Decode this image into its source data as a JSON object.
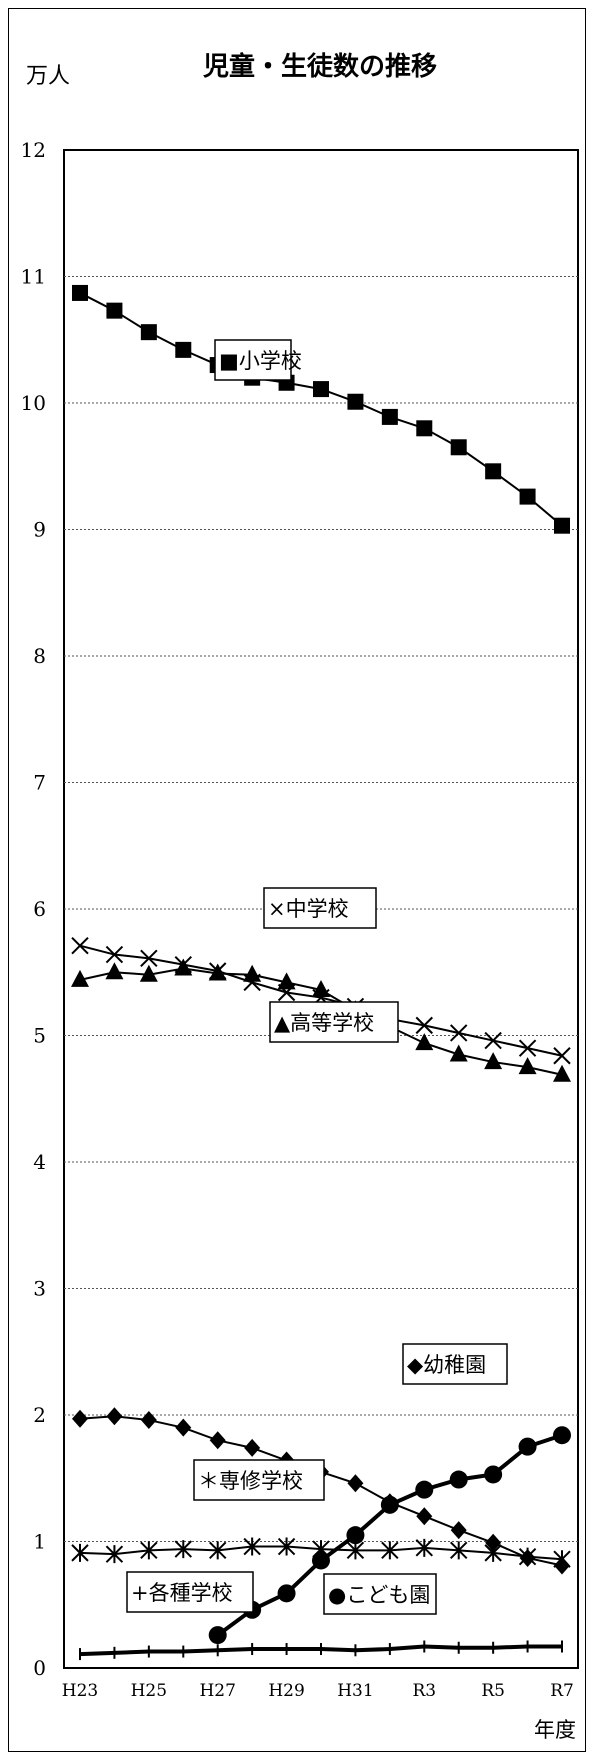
{
  "chart_data": {
    "type": "line",
    "title": "児童・生徒数の推移",
    "ylabel": "万人",
    "xlabel": "年度",
    "ylim": [
      0,
      12
    ],
    "yticks": [
      0,
      1,
      2,
      3,
      4,
      5,
      6,
      7,
      8,
      9,
      10,
      11,
      12
    ],
    "grid": true,
    "x": [
      "H23",
      "H24",
      "H25",
      "H26",
      "H27",
      "H28",
      "H29",
      "H30",
      "H31",
      "R2",
      "R3",
      "R4",
      "R5",
      "R6",
      "R7"
    ],
    "x_tick_labels": [
      "H23",
      "H25",
      "H27",
      "H29",
      "H31",
      "R3",
      "R5",
      "R7"
    ],
    "series": [
      {
        "name": "小学校",
        "legend": "■小学校",
        "marker": "square",
        "color": "#000000",
        "values": [
          10.87,
          10.73,
          10.56,
          10.42,
          10.3,
          10.2,
          10.16,
          10.11,
          10.01,
          9.89,
          9.8,
          9.65,
          9.46,
          9.26,
          9.03
        ]
      },
      {
        "name": "中学校",
        "legend": "×中学校",
        "marker": "x",
        "color": "#000000",
        "values": [
          5.71,
          5.64,
          5.61,
          5.56,
          5.51,
          5.42,
          5.34,
          5.3,
          5.23,
          5.13,
          5.08,
          5.02,
          4.96,
          4.9,
          4.84
        ]
      },
      {
        "name": "高等学校",
        "legend": "▲高等学校",
        "marker": "triangle",
        "color": "#000000",
        "values": [
          5.44,
          5.5,
          5.48,
          5.53,
          5.49,
          5.48,
          5.42,
          5.36,
          5.2,
          5.07,
          4.94,
          4.85,
          4.79,
          4.75,
          4.69
        ]
      },
      {
        "name": "幼稚園",
        "legend": "◆幼稚園",
        "marker": "diamond",
        "color": "#000000",
        "values": [
          1.97,
          1.99,
          1.96,
          1.9,
          1.8,
          1.74,
          1.64,
          1.55,
          1.46,
          1.31,
          1.2,
          1.09,
          0.99,
          0.87,
          0.81
        ]
      },
      {
        "name": "専修学校",
        "legend": "＊専修学校",
        "marker": "asterisk",
        "color": "#000000",
        "values": [
          0.91,
          0.9,
          0.93,
          0.94,
          0.93,
          0.96,
          0.96,
          0.94,
          0.93,
          0.93,
          0.95,
          0.93,
          0.91,
          0.88,
          0.86
        ]
      },
      {
        "name": "各種学校",
        "legend": "+各種学校",
        "marker": "plus",
        "color": "#000000",
        "values": [
          0.11,
          0.12,
          0.13,
          0.13,
          0.14,
          0.15,
          0.15,
          0.15,
          0.14,
          0.15,
          0.17,
          0.16,
          0.16,
          0.17,
          0.17
        ]
      },
      {
        "name": "こども園",
        "legend": "●こども園",
        "marker": "circle",
        "color": "#000000",
        "values": [
          null,
          null,
          null,
          null,
          0.26,
          0.46,
          0.59,
          0.85,
          1.05,
          1.29,
          1.41,
          1.49,
          1.53,
          1.75,
          1.84
        ]
      }
    ]
  }
}
